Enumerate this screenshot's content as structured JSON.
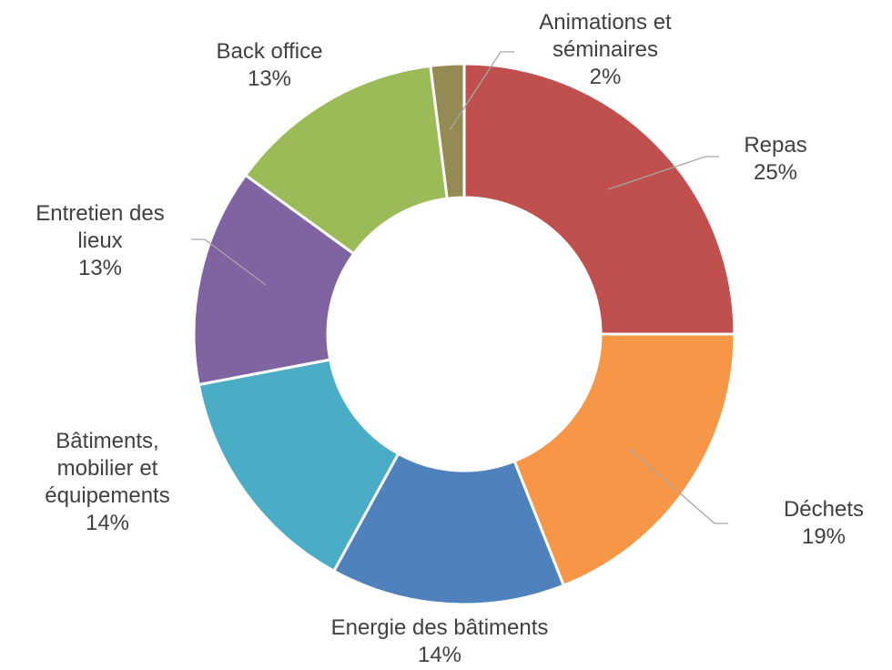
{
  "chart_data": {
    "type": "donut",
    "categories": [
      "Repas",
      "Déchets",
      "Energie des bâtiments",
      "Bâtiments, mobilier et équipements",
      "Entretien des lieux",
      "Back office",
      "Animations et séminaires"
    ],
    "values": [
      25,
      19,
      14,
      14,
      13,
      13,
      2
    ],
    "value_labels": [
      "25%",
      "19%",
      "14%",
      "14%",
      "13%",
      "13%",
      "2%"
    ],
    "colors": [
      "#c0504d",
      "#f79646",
      "#4f81bd",
      "#4bacc6",
      "#8064a2",
      "#9bbb59",
      "#948a54"
    ]
  }
}
